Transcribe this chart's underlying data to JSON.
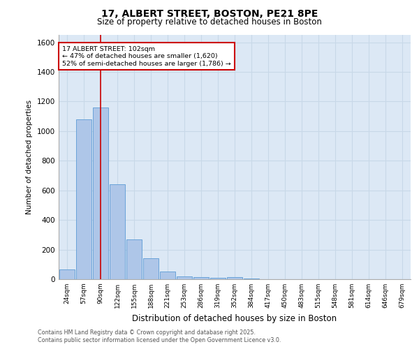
{
  "title_line1": "17, ALBERT STREET, BOSTON, PE21 8PE",
  "title_line2": "Size of property relative to detached houses in Boston",
  "xlabel": "Distribution of detached houses by size in Boston",
  "ylabel": "Number of detached properties",
  "bar_labels": [
    "24sqm",
    "57sqm",
    "90sqm",
    "122sqm",
    "155sqm",
    "188sqm",
    "221sqm",
    "253sqm",
    "286sqm",
    "319sqm",
    "352sqm",
    "384sqm",
    "417sqm",
    "450sqm",
    "483sqm",
    "515sqm",
    "548sqm",
    "581sqm",
    "614sqm",
    "646sqm",
    "679sqm"
  ],
  "bar_values": [
    65,
    1080,
    1160,
    640,
    270,
    140,
    50,
    20,
    15,
    10,
    15,
    5,
    0,
    0,
    0,
    0,
    0,
    0,
    0,
    0,
    0
  ],
  "bar_color": "#aec6e8",
  "bar_edge_color": "#5b9bd5",
  "grid_color": "#c8d8e8",
  "background_color": "#dce8f5",
  "red_line_index": 2,
  "annotation_text": "17 ALBERT STREET: 102sqm\n← 47% of detached houses are smaller (1,620)\n52% of semi-detached houses are larger (1,786) →",
  "annotation_box_color": "#ffffff",
  "annotation_border_color": "#cc0000",
  "ylim": [
    0,
    1650
  ],
  "yticks": [
    0,
    200,
    400,
    600,
    800,
    1000,
    1200,
    1400,
    1600
  ],
  "footnote1": "Contains HM Land Registry data © Crown copyright and database right 2025.",
  "footnote2": "Contains public sector information licensed under the Open Government Licence v3.0."
}
